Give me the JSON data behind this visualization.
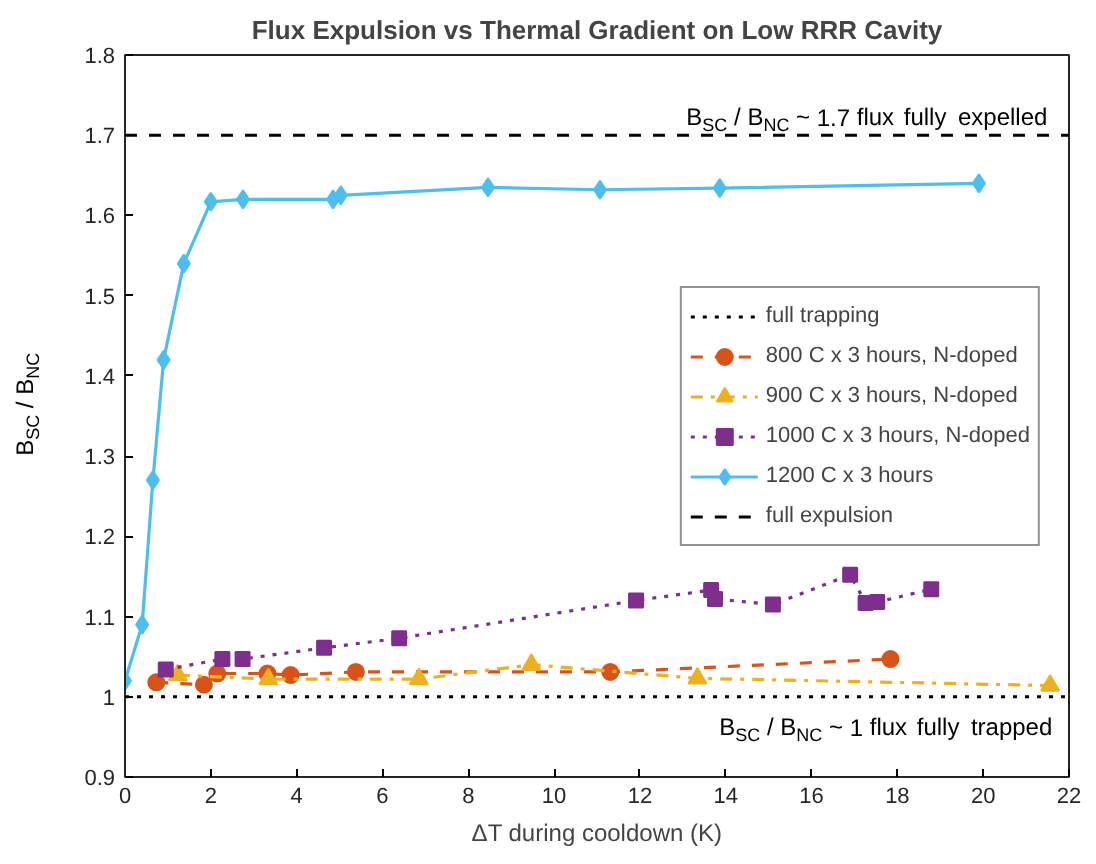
{
  "chart_data": {
    "type": "line",
    "title": "Flux Expulsion vs Thermal Gradient on Low RRR Cavity",
    "xlabel": "ΔT during cooldown (K)",
    "ylabel": "B$_{SC}$ / B$_{NC}$",
    "xlim": [
      0,
      22
    ],
    "xticks": [
      0,
      2,
      4,
      6,
      8,
      10,
      12,
      14,
      16,
      18,
      20,
      22
    ],
    "ylim": [
      0.9,
      1.8
    ],
    "yticks": [
      0.9,
      1,
      1.1,
      1.2,
      1.3,
      1.4,
      1.5,
      1.6,
      1.7,
      1.8
    ],
    "grid": false,
    "legend": "right",
    "series": [
      {
        "name": "800 C x 3 hours, N-doped",
        "color": "#d95319",
        "marker": "circle",
        "line_style": "dashed",
        "x": [
          0.73,
          1.84,
          2.15,
          3.32,
          3.86,
          5.38,
          11.31,
          17.84
        ],
        "values": [
          1.018,
          1.015,
          1.029,
          1.029,
          1.027,
          1.031,
          1.031,
          1.047
        ]
      },
      {
        "name": "900 C x 3 hours, N-doped",
        "color": "#edb120",
        "marker": "triangle",
        "line_style": "dashdot",
        "x": [
          1.23,
          3.34,
          6.85,
          9.47,
          13.34,
          21.56
        ],
        "values": [
          1.027,
          1.022,
          1.022,
          1.04,
          1.023,
          1.014
        ]
      },
      {
        "name": "1000 C x 3 hours, N-doped",
        "color": "#7e2f8e",
        "marker": "square",
        "line_style": "dotted",
        "x": [
          0.95,
          2.27,
          2.74,
          4.64,
          6.39,
          11.91,
          13.66,
          13.75,
          15.1,
          16.9,
          17.26,
          17.53,
          18.79
        ],
        "values": [
          1.034,
          1.047,
          1.047,
          1.061,
          1.073,
          1.12,
          1.133,
          1.122,
          1.115,
          1.152,
          1.117,
          1.118,
          1.134
        ]
      },
      {
        "name": "1200 C x 3 hours",
        "color": "#4dbeee",
        "marker": "diamond",
        "line_style": "solid",
        "x": [
          0,
          0.4,
          0.65,
          0.9,
          1.37,
          2.0,
          2.75,
          4.85,
          5.03,
          8.46,
          11.07,
          13.86,
          19.9
        ],
        "values": [
          1.02,
          1.09,
          1.27,
          1.42,
          1.54,
          1.617,
          1.62,
          1.62,
          1.625,
          1.635,
          1.632,
          1.634,
          1.64
        ]
      }
    ],
    "ref_lines": [
      {
        "axis": "y",
        "value": 1,
        "label": "full trapping",
        "color": "#000000",
        "line_style": "dotted"
      },
      {
        "axis": "y",
        "value": 1.7,
        "label": "full expulsion",
        "color": "#000000",
        "line_style": "dashed"
      }
    ],
    "annotations": [
      "B$_{SC}$ / B$_{NC}$ ~ 1 flux fully trapped",
      "B$_{SC}$ / B$_{NC}$ ~ 1.7 flux fully expelled"
    ]
  }
}
